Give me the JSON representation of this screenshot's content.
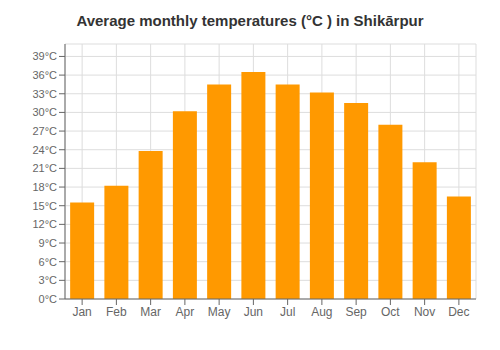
{
  "chart_data": {
    "type": "bar",
    "title": "Average monthly temperatures (°C ) in Shikārpur",
    "categories": [
      "Jan",
      "Feb",
      "Mar",
      "Apr",
      "May",
      "Jun",
      "Jul",
      "Aug",
      "Sep",
      "Oct",
      "Nov",
      "Dec"
    ],
    "values": [
      15.5,
      18.2,
      23.8,
      30.2,
      34.5,
      36.5,
      34.5,
      33.2,
      31.5,
      28.0,
      22.0,
      16.5
    ],
    "color": "#FF9900",
    "ylim": [
      0,
      41
    ],
    "yticks": [
      {
        "value": 0,
        "label": "0°C"
      },
      {
        "value": 3,
        "label": "3°C"
      },
      {
        "value": 6,
        "label": "6°C"
      },
      {
        "value": 9,
        "label": "9°C"
      },
      {
        "value": 12,
        "label": "12°C"
      },
      {
        "value": 15,
        "label": "15°C"
      },
      {
        "value": 18,
        "label": "18°C"
      },
      {
        "value": 21,
        "label": "21°C"
      },
      {
        "value": 24,
        "label": "24°C"
      },
      {
        "value": 27,
        "label": "27°C"
      },
      {
        "value": 30,
        "label": "30°C"
      },
      {
        "value": 33,
        "label": "33°C"
      },
      {
        "value": 36,
        "label": "36°C"
      },
      {
        "value": 39,
        "label": "39°C"
      }
    ],
    "grid": true
  }
}
